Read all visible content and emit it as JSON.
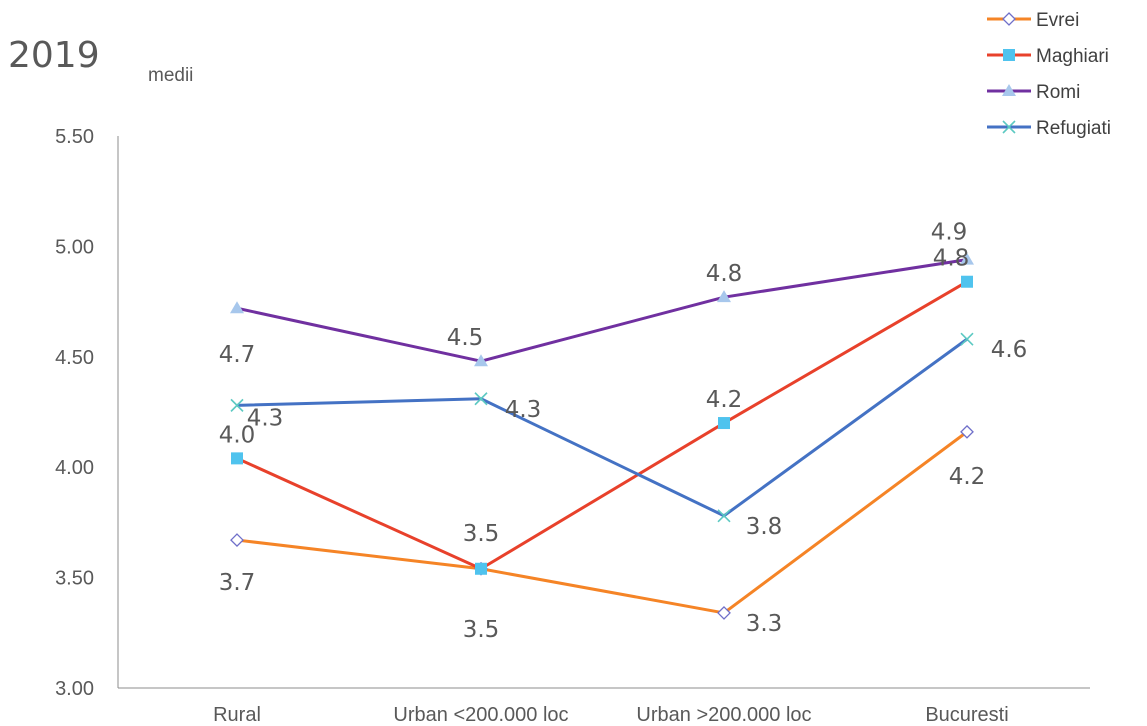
{
  "chart_data": {
    "type": "line",
    "title": "2019",
    "ylabel": "medii",
    "categories": [
      "Rural",
      "Urban <200.000 loc",
      "Urban >200.000 loc",
      "Bucuresti"
    ],
    "ylim": [
      3.0,
      5.5
    ],
    "yticks": [
      "3.00",
      "3.50",
      "4.00",
      "4.50",
      "5.00",
      "5.50"
    ],
    "legend_position": "top-right",
    "series": [
      {
        "name": "Evrei",
        "values": [
          3.67,
          3.54,
          3.34,
          4.16
        ],
        "labels": [
          "3.7",
          "3.5",
          "3.3",
          "4.2"
        ],
        "color": "#F58426",
        "marker": "diamond"
      },
      {
        "name": "Maghiari",
        "values": [
          4.04,
          3.54,
          4.2,
          4.84
        ],
        "labels": [
          "4.0",
          "3.5",
          "4.2",
          "4.8"
        ],
        "color": "#E8412B",
        "marker": "square"
      },
      {
        "name": "Romi",
        "values": [
          4.72,
          4.48,
          4.77,
          4.94
        ],
        "labels": [
          "4.7",
          "4.5",
          "4.8",
          "4.9"
        ],
        "color": "#7030A0",
        "marker": "triangle"
      },
      {
        "name": "Refugiati",
        "values": [
          4.28,
          4.31,
          3.78,
          4.58
        ],
        "labels": [
          "4.3",
          "4.3",
          "3.8",
          "4.6"
        ],
        "color": "#4472C4",
        "marker": "x"
      }
    ]
  }
}
